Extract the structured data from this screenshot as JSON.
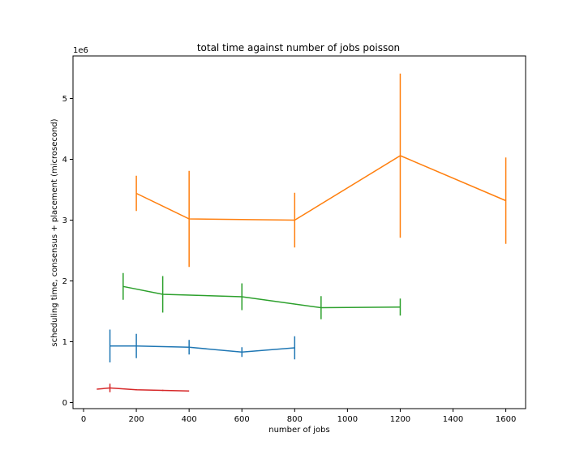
{
  "chart_data": {
    "type": "line",
    "title": "total time against number of jobs poisson",
    "xlabel": "number of jobs",
    "ylabel": "scheduling time, consensus + placement (microsecond)",
    "y_offset_label": "1e6",
    "xlim": [
      -40,
      1675
    ],
    "ylim": [
      -0.1,
      5.7
    ],
    "x_ticks": [
      0,
      200,
      400,
      600,
      800,
      1000,
      1200,
      1400,
      1600
    ],
    "x_tick_labels": [
      "0",
      "200",
      "400",
      "600",
      "800",
      "1000",
      "1200",
      "1400",
      "1600"
    ],
    "y_ticks": [
      0,
      1,
      2,
      3,
      4,
      5
    ],
    "y_tick_labels": [
      "0",
      "1",
      "2",
      "3",
      "4",
      "5"
    ],
    "grid": false,
    "series": [
      {
        "color": "#1f77b4",
        "x": [
          100,
          200,
          400,
          600,
          800
        ],
        "y": [
          0.93,
          0.93,
          0.91,
          0.83,
          0.9
        ],
        "yerr": [
          0.27,
          0.2,
          0.12,
          0.08,
          0.19
        ]
      },
      {
        "color": "#ff7f0e",
        "x": [
          200,
          400,
          800,
          1200,
          1600
        ],
        "y": [
          3.44,
          3.02,
          3.0,
          4.06,
          3.32
        ],
        "yerr": [
          0.29,
          0.79,
          0.45,
          1.35,
          0.71
        ]
      },
      {
        "color": "#2ca02c",
        "x": [
          150,
          300,
          600,
          900,
          1200
        ],
        "y": [
          1.91,
          1.78,
          1.74,
          1.56,
          1.57
        ],
        "yerr": [
          0.22,
          0.3,
          0.22,
          0.19,
          0.14
        ]
      },
      {
        "color": "#d62728",
        "x": [
          50,
          100,
          200,
          300,
          400
        ],
        "y": [
          0.22,
          0.24,
          0.21,
          0.2,
          0.19
        ],
        "yerr": [
          0.0,
          0.07,
          0.01,
          0.01,
          0.0
        ]
      }
    ]
  }
}
